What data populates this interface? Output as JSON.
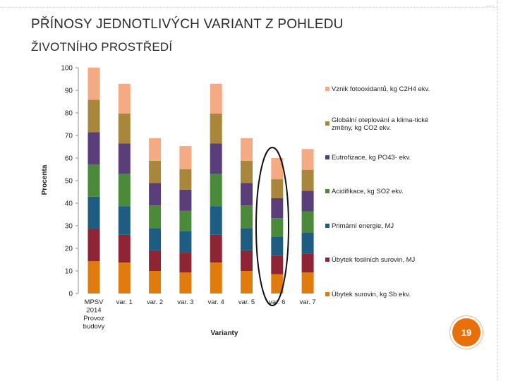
{
  "slide": {
    "title_line1": "PŘÍNOSY JEDNOTLIVÝCH VARIANT Z POHLEDU",
    "title_line2": "ŽIVOTNÍHO PROSTŘEDÍ",
    "page_number": "19",
    "accent_color": "#e8700b"
  },
  "chart_data": {
    "type": "bar",
    "stacked": true,
    "title": "",
    "xlabel": "Varianty",
    "ylabel": "Procenta",
    "ylim": [
      0,
      100
    ],
    "yticks": [
      0,
      10,
      20,
      30,
      40,
      50,
      60,
      70,
      80,
      90,
      100
    ],
    "grid": false,
    "legend_position": "right",
    "categories": [
      "MPSV 2014 Provoz budovy",
      "var. 1",
      "var. 2",
      "var. 3",
      "var. 4",
      "var. 5",
      "var. 6",
      "var. 7"
    ],
    "highlighted_category": "var. 6",
    "series": [
      {
        "name": "Úbytek surovin, kg Sb ekv.",
        "color": "#e07b0e",
        "values": [
          14.3,
          13.7,
          10,
          9.3,
          13.7,
          10,
          8.6,
          9.3
        ]
      },
      {
        "name": "Úbytek fosilních surovin, MJ",
        "color": "#8e2534",
        "values": [
          14.3,
          12.3,
          9.1,
          8.8,
          12.3,
          9.1,
          8.2,
          8.4
        ]
      },
      {
        "name": "Primární energie, MJ",
        "color": "#1e5c82",
        "values": [
          14.3,
          12.7,
          9.9,
          9.4,
          12.7,
          9.9,
          8.4,
          9.3
        ]
      },
      {
        "name": "Acidifikace, kg SO2 ekv.",
        "color": "#4a8a3a",
        "values": [
          14.3,
          14.3,
          10,
          9.1,
          14.3,
          10,
          8.2,
          9.3
        ]
      },
      {
        "name": "Eutrofizace, kg PO43- ekv.",
        "color": "#5a3e7a",
        "values": [
          14.3,
          13.4,
          9.9,
          9.4,
          13.4,
          9.9,
          8.8,
          9.2
        ]
      },
      {
        "name": "Globální oteplování a klima-tické změny, kg CO2 ekv.",
        "color": "#a8873c",
        "values": [
          14.3,
          13.3,
          9.9,
          9.0,
          13.3,
          9.9,
          8.4,
          9.3
        ]
      },
      {
        "name": "Vznik fotooxidantů, kg C2H4 ekv.",
        "color": "#f4ab84",
        "values": [
          14.3,
          13.2,
          10,
          10.3,
          13.2,
          10,
          9.4,
          9.2
        ]
      }
    ]
  }
}
